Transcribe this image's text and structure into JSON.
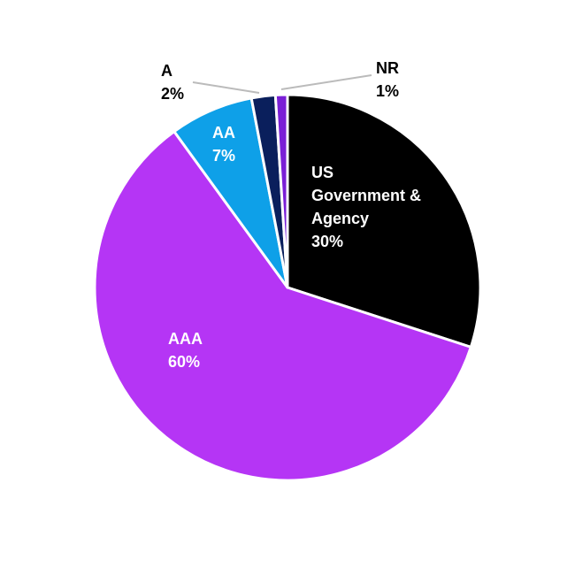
{
  "chart_data": {
    "type": "pie",
    "categories": [
      "US Government & Agency",
      "AAA",
      "AA",
      "A",
      "NR"
    ],
    "values": [
      30,
      60,
      7,
      2,
      1
    ],
    "value_labels": [
      "30%",
      "60%",
      "7%",
      "2%",
      "1%"
    ],
    "colors": [
      "#000000",
      "#b535f5",
      "#0ea0e8",
      "#0a1f5c",
      "#7a1fd6"
    ]
  }
}
